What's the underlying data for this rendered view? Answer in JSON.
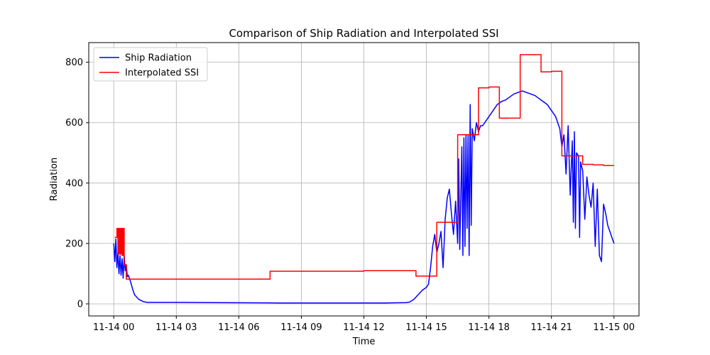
{
  "chart_data": {
    "type": "line",
    "title": "Comparison of Ship Radiation and Interpolated SSI",
    "xlabel": "Time",
    "ylabel": "Radiation",
    "x_unit": "hours",
    "x_ticks": [
      {
        "value": 0,
        "label": "11-14 00"
      },
      {
        "value": 3,
        "label": "11-14 03"
      },
      {
        "value": 6,
        "label": "11-14 06"
      },
      {
        "value": 9,
        "label": "11-14 09"
      },
      {
        "value": 12,
        "label": "11-14 12"
      },
      {
        "value": 15,
        "label": "11-14 15"
      },
      {
        "value": 18,
        "label": "11-14 18"
      },
      {
        "value": 21,
        "label": "11-14 21"
      },
      {
        "value": 24,
        "label": "11-15 00"
      }
    ],
    "y_ticks": [
      0,
      200,
      400,
      600,
      800
    ],
    "xlim": [
      -1.2,
      25.2
    ],
    "ylim": [
      -40,
      865
    ],
    "grid": true,
    "legend_position": "top-left",
    "series": [
      {
        "name": "Ship Radiation",
        "color": "#0000ff",
        "x": [
          0.0,
          0.05,
          0.1,
          0.15,
          0.2,
          0.25,
          0.3,
          0.35,
          0.4,
          0.45,
          0.5,
          0.55,
          0.6,
          0.65,
          0.7,
          0.8,
          0.9,
          1.0,
          1.2,
          1.4,
          1.6,
          1.8,
          2.0,
          3.0,
          5.0,
          8.0,
          11.0,
          13.0,
          14.0,
          14.2,
          14.4,
          14.6,
          14.8,
          15.0,
          15.1,
          15.2,
          15.3,
          15.4,
          15.5,
          15.6,
          15.7,
          15.8,
          15.9,
          16.0,
          16.1,
          16.2,
          16.3,
          16.4,
          16.5,
          16.55,
          16.6,
          16.7,
          16.75,
          16.8,
          16.85,
          16.9,
          16.95,
          17.0,
          17.05,
          17.1,
          17.15,
          17.2,
          17.3,
          17.4,
          17.5,
          17.6,
          17.7,
          17.8,
          18.0,
          18.2,
          18.4,
          18.6,
          18.8,
          19.0,
          19.2,
          19.4,
          19.6,
          19.8,
          20.0,
          20.2,
          20.4,
          20.6,
          20.8,
          21.0,
          21.2,
          21.4,
          21.5,
          21.6,
          21.7,
          21.8,
          21.9,
          22.0,
          22.05,
          22.1,
          22.15,
          22.2,
          22.3,
          22.35,
          22.4,
          22.5,
          22.6,
          22.7,
          22.8,
          22.9,
          23.0,
          23.1,
          23.2,
          23.3,
          23.4,
          23.5,
          23.6,
          23.7,
          23.8,
          23.9,
          24.0
        ],
        "y": [
          200,
          140,
          215,
          120,
          170,
          100,
          160,
          95,
          150,
          85,
          160,
          110,
          130,
          90,
          95,
          75,
          50,
          30,
          15,
          8,
          5,
          5,
          5,
          5,
          4,
          3,
          3,
          3,
          4,
          6,
          15,
          30,
          45,
          55,
          65,
          120,
          190,
          230,
          170,
          200,
          240,
          120,
          280,
          350,
          380,
          300,
          230,
          340,
          200,
          480,
          180,
          520,
          160,
          550,
          190,
          560,
          250,
          560,
          160,
          660,
          260,
          580,
          540,
          600,
          570,
          590,
          590,
          600,
          620,
          640,
          660,
          670,
          675,
          685,
          695,
          700,
          705,
          700,
          695,
          690,
          680,
          670,
          660,
          640,
          620,
          580,
          520,
          560,
          430,
          590,
          360,
          540,
          270,
          570,
          250,
          500,
          490,
          220,
          470,
          440,
          280,
          420,
          360,
          320,
          400,
          190,
          380,
          160,
          140,
          330,
          300,
          260,
          240,
          220,
          200
        ]
      },
      {
        "name": "Interpolated SSI",
        "color": "#ff0000",
        "step": true,
        "x": [
          0.05,
          0.15,
          0.2,
          0.25,
          0.3,
          0.35,
          0.4,
          0.45,
          0.5,
          0.6,
          1.0,
          2.0,
          7.5,
          8.0,
          12.0,
          14.5,
          15.0,
          15.5,
          16.0,
          16.5,
          17.0,
          17.5,
          18.0,
          18.5,
          19.0,
          19.5,
          20.0,
          20.5,
          21.0,
          21.5,
          22.0,
          22.5,
          23.0,
          23.5,
          24.0
        ],
        "y": [
          220,
          250,
          165,
          250,
          165,
          250,
          160,
          250,
          130,
          82,
          82,
          82,
          108,
          108,
          110,
          92,
          92,
          270,
          270,
          560,
          560,
          715,
          718,
          615,
          615,
          825,
          825,
          768,
          770,
          490,
          490,
          462,
          460,
          458,
          458
        ]
      }
    ]
  }
}
